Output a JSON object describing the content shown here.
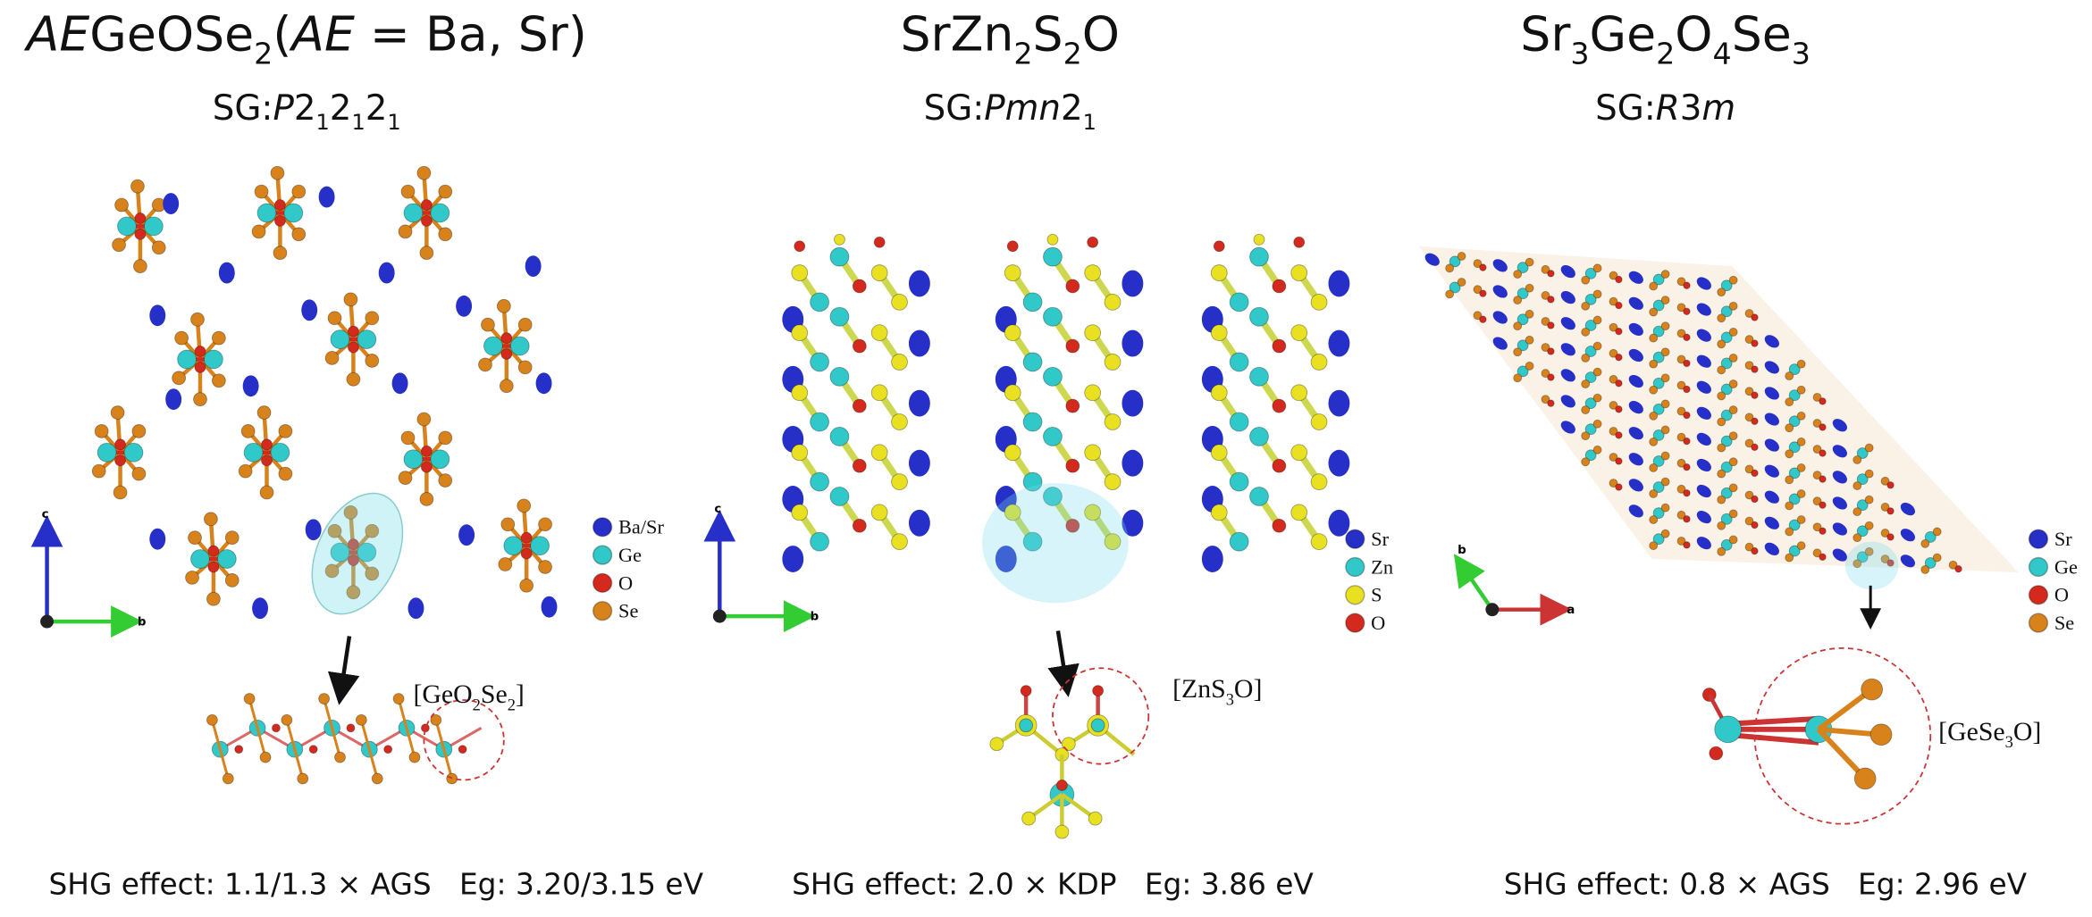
{
  "panels": [
    {
      "title": [
        [
          "AE",
          "i"
        ],
        [
          "GeOSe",
          "n"
        ],
        [
          "2",
          "sub"
        ],
        [
          "(",
          "n"
        ],
        [
          "AE",
          "i"
        ],
        [
          " = Ba, Sr)",
          "n"
        ]
      ],
      "space_group": [
        [
          "SG:",
          "n"
        ],
        [
          "P",
          "i"
        ],
        [
          "2",
          "n"
        ],
        [
          "1",
          "sub"
        ],
        [
          "2",
          "n"
        ],
        [
          "1",
          "sub"
        ],
        [
          "2",
          "n"
        ],
        [
          "1",
          "sub"
        ]
      ],
      "legend": [
        {
          "label": "Ba/Sr",
          "color": "#2630c8"
        },
        {
          "label": "Ge",
          "color": "#30c8c8"
        },
        {
          "label": "O",
          "color": "#d42a1e"
        },
        {
          "label": "Se",
          "color": "#d8821c"
        }
      ],
      "axes": [
        "c",
        "b"
      ],
      "motif": [
        [
          "[GeO",
          "n"
        ],
        [
          "2",
          "sub"
        ],
        [
          "Se",
          "n"
        ],
        [
          "2",
          "sub"
        ],
        [
          "]",
          "n"
        ]
      ],
      "property": "SHG effect: 1.1/1.3 × AGS   Eg: 3.20/3.15 eV"
    },
    {
      "title": [
        [
          "SrZn",
          "n"
        ],
        [
          "2",
          "sub"
        ],
        [
          "S",
          "n"
        ],
        [
          "2",
          "sub"
        ],
        [
          "O",
          "n"
        ]
      ],
      "space_group": [
        [
          "SG:",
          "n"
        ],
        [
          "Pmn",
          "i"
        ],
        [
          "2",
          "n"
        ],
        [
          "1",
          "sub"
        ]
      ],
      "legend": [
        {
          "label": "Sr",
          "color": "#2630c8"
        },
        {
          "label": "Zn",
          "color": "#30c8c8"
        },
        {
          "label": "S",
          "color": "#e8e020"
        },
        {
          "label": "O",
          "color": "#d42a1e"
        }
      ],
      "axes": [
        "c",
        "b"
      ],
      "motif": [
        [
          "[ZnS",
          "n"
        ],
        [
          "3",
          "sub"
        ],
        [
          "O]",
          "n"
        ]
      ],
      "property": "SHG effect: 2.0 × KDP   Eg: 3.86 eV"
    },
    {
      "title": [
        [
          "Sr",
          "n"
        ],
        [
          "3",
          "sub"
        ],
        [
          "Ge",
          "n"
        ],
        [
          "2",
          "sub"
        ],
        [
          "O",
          "n"
        ],
        [
          "4",
          "sub"
        ],
        [
          "Se",
          "n"
        ],
        [
          "3",
          "sub"
        ]
      ],
      "space_group": [
        [
          "SG:",
          "n"
        ],
        [
          "R",
          "i"
        ],
        [
          "3",
          "n"
        ],
        [
          "m",
          "i"
        ]
      ],
      "legend": [
        {
          "label": "Sr",
          "color": "#2630c8"
        },
        {
          "label": "Ge",
          "color": "#30c8c8"
        },
        {
          "label": "O",
          "color": "#d42a1e"
        },
        {
          "label": "Se",
          "color": "#d8821c"
        }
      ],
      "axes": [
        "b",
        "a"
      ],
      "motif": [
        [
          "[GeSe",
          "n"
        ],
        [
          "3",
          "sub"
        ],
        [
          "O]",
          "n"
        ]
      ],
      "property": "SHG effect: 0.8 × AGS   Eg: 2.96 eV"
    }
  ]
}
